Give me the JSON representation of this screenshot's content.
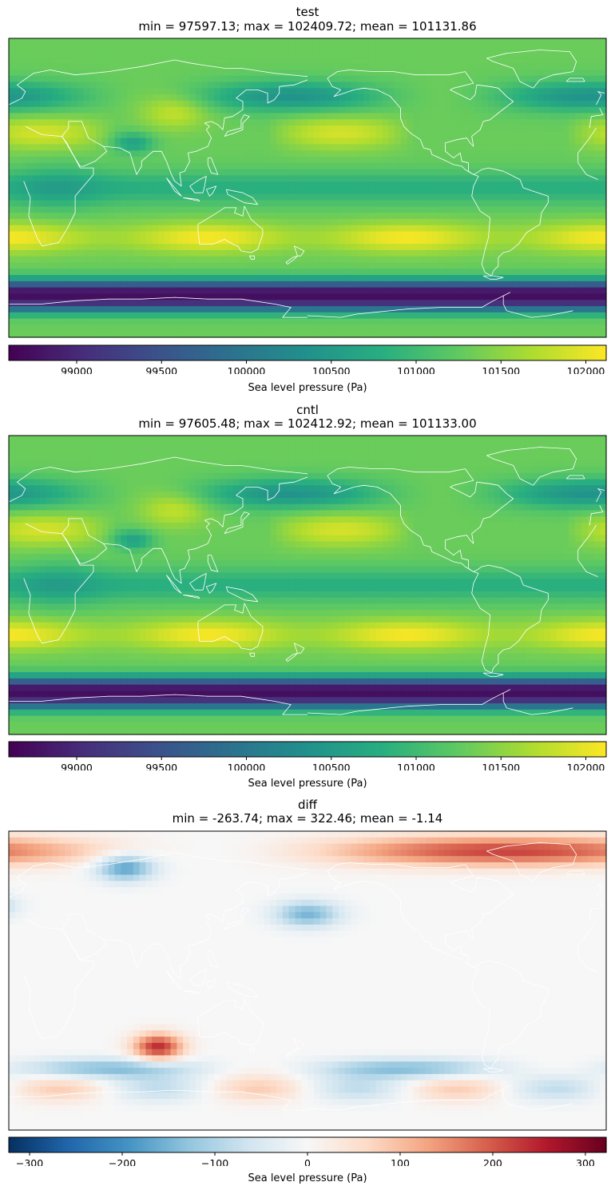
{
  "chart_data": [
    {
      "type": "heatmap",
      "title": "test",
      "subtitle": "min = 97597.13; max = 102409.72; mean = 101131.86",
      "colormap": "viridis",
      "colorbar": {
        "label": "Sea level pressure (Pa)",
        "range": [
          98600,
          102120
        ],
        "ticks": [
          99000,
          99500,
          100000,
          100500,
          101000,
          101500,
          102000
        ],
        "tick_labels": [
          "99000",
          "99500",
          "100000",
          "100500",
          "101000",
          "101500",
          "102000"
        ]
      },
      "stats": {
        "min": 97597.13,
        "max": 102409.72,
        "mean": 101131.86
      },
      "grid": false
    },
    {
      "type": "heatmap",
      "title": "cntl",
      "subtitle": "min = 97605.48; max = 102412.92; mean = 101133.00",
      "colormap": "viridis",
      "colorbar": {
        "label": "Sea level pressure (Pa)",
        "range": [
          98600,
          102120
        ],
        "ticks": [
          99000,
          99500,
          100000,
          100500,
          101000,
          101500,
          102000
        ],
        "tick_labels": [
          "99000",
          "99500",
          "100000",
          "100500",
          "101000",
          "101500",
          "102000"
        ]
      },
      "stats": {
        "min": 97605.48,
        "max": 102412.92,
        "mean": 101133.0
      },
      "grid": false
    },
    {
      "type": "heatmap",
      "title": "diff",
      "subtitle": "min = -263.74; max = 322.46; mean = -1.14",
      "colormap": "RdBu_r",
      "colorbar": {
        "label": "Sea level pressure (Pa)",
        "range": [
          -322.46,
          322.46
        ],
        "ticks": [
          -300,
          -200,
          -100,
          0,
          100,
          200,
          300
        ],
        "tick_labels": [
          "−300",
          "−200",
          "−100",
          "0",
          "100",
          "200",
          "300"
        ]
      },
      "stats": {
        "min": -263.74,
        "max": 322.46,
        "mean": -1.14
      },
      "grid": false
    }
  ],
  "colors": {
    "coastline": "#ffffff",
    "frame": "#000000",
    "viridis": [
      "#440154",
      "#472d7b",
      "#3b528b",
      "#2c728e",
      "#21918c",
      "#28ae80",
      "#5ec962",
      "#addc30",
      "#fde725"
    ],
    "rdbu_r": [
      "#053061",
      "#2166ac",
      "#4393c3",
      "#92c5de",
      "#d1e5f0",
      "#f7f7f7",
      "#fddbc7",
      "#f4a582",
      "#d6604d",
      "#b2182b",
      "#67001f"
    ]
  }
}
